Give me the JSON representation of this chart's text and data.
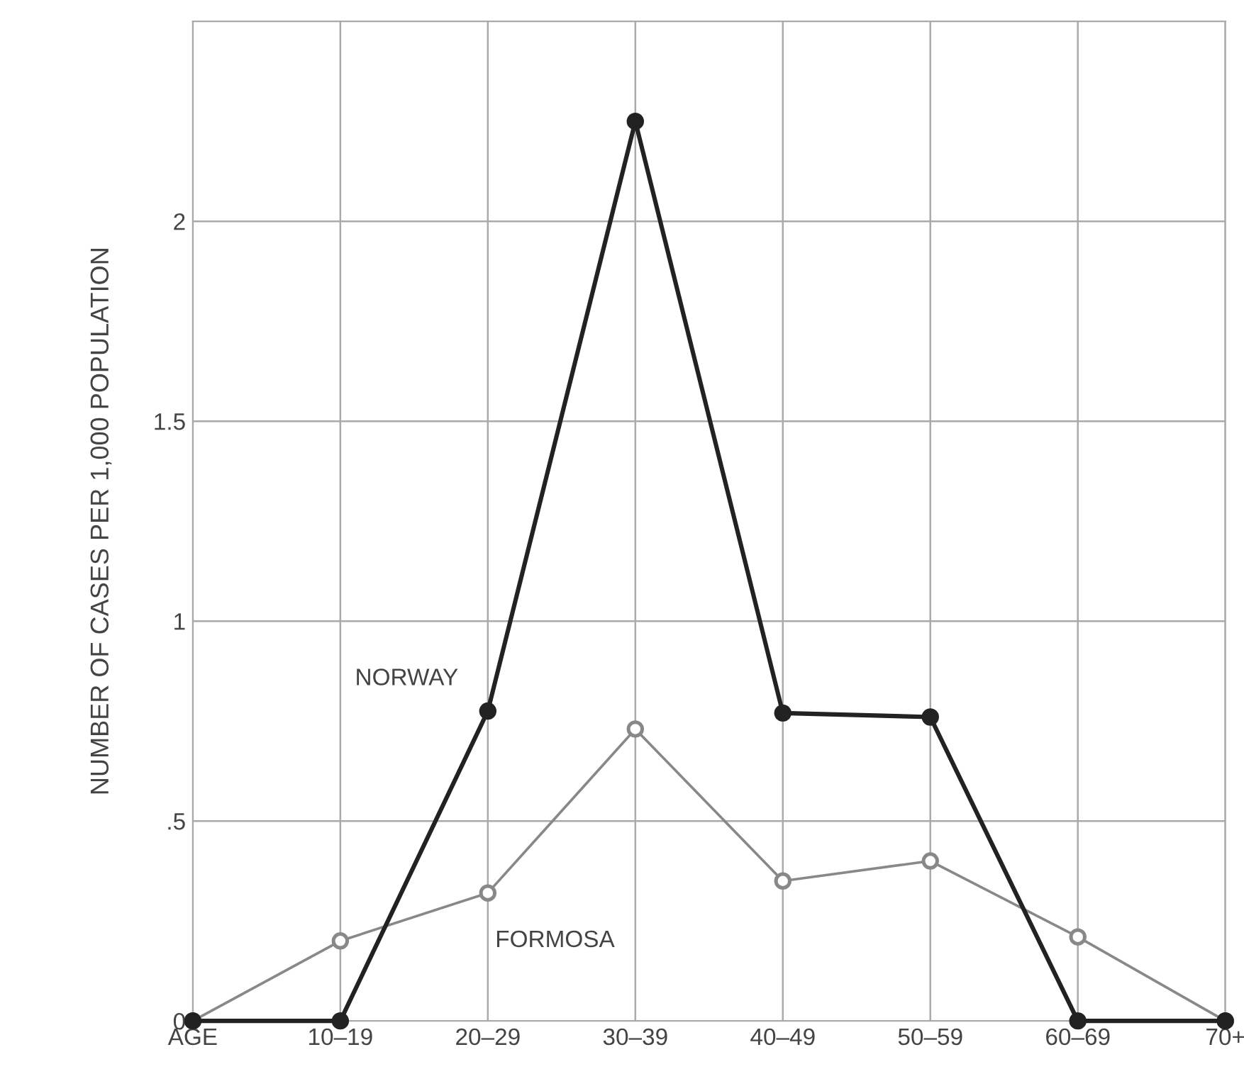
{
  "chart_data": {
    "type": "line",
    "ylabel": "NUMBER OF CASES PER 1,000 POPULATION",
    "categories": [
      "AGE",
      "10–19",
      "20–29",
      "30–39",
      "40–49",
      "50–59",
      "60–69",
      "70+"
    ],
    "series": [
      {
        "name": "NORWAY",
        "color": "#222222",
        "values": [
          0,
          0,
          0.775,
          2.25,
          0.77,
          0.76,
          0,
          0
        ]
      },
      {
        "name": "FORMOSA",
        "color": "#888888",
        "values": [
          0,
          0.2,
          0.32,
          0.73,
          0.35,
          0.4,
          0.21,
          0
        ]
      }
    ],
    "ylim": [
      0,
      2.5
    ],
    "yticks": [
      0,
      {
        "value": 0.5,
        "label": ".5"
      },
      1,
      1.5,
      2
    ],
    "grid": true,
    "marker": "circle",
    "line_style": "solid"
  }
}
